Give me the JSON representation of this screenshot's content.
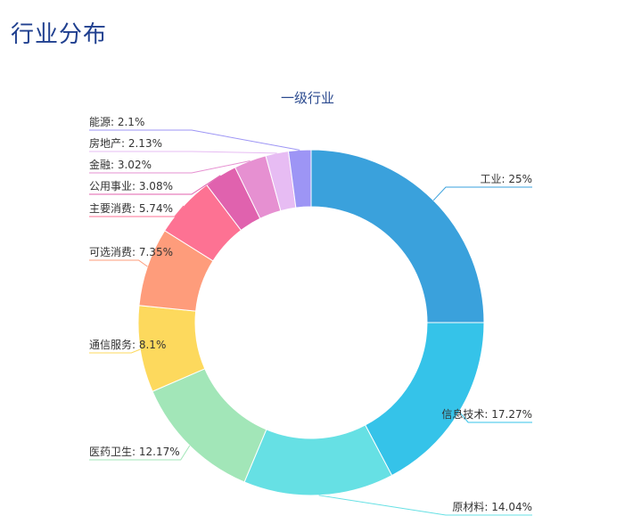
{
  "page": {
    "title": "行业分布"
  },
  "chart_data": {
    "type": "pie",
    "title": "一级行业",
    "slices": [
      {
        "name": "工业",
        "value": 25,
        "label": "工业: 25%",
        "color": "#3aa1dc"
      },
      {
        "name": "信息技术",
        "value": 17.27,
        "label": "信息技术: 17.27%",
        "color": "#35c3e9"
      },
      {
        "name": "原材料",
        "value": 14.04,
        "label": "原材料: 14.04%",
        "color": "#66e0e4"
      },
      {
        "name": "医药卫生",
        "value": 12.17,
        "label": "医药卫生: 12.17%",
        "color": "#a2e6b8"
      },
      {
        "name": "通信服务",
        "value": 8.1,
        "label": "通信服务: 8.1%",
        "color": "#fdd95d"
      },
      {
        "name": "可选消费",
        "value": 7.35,
        "label": "可选消费: 7.35%",
        "color": "#fe9c7b"
      },
      {
        "name": "主要消费",
        "value": 5.74,
        "label": "主要消费: 5.74%",
        "color": "#fd7293"
      },
      {
        "name": "公用事业",
        "value": 3.08,
        "label": "公用事业: 3.08%",
        "color": "#e062ae"
      },
      {
        "name": "金融",
        "value": 3.02,
        "label": "金融: 3.02%",
        "color": "#e690d1"
      },
      {
        "name": "房地产",
        "value": 2.13,
        "label": "房地产: 2.13%",
        "color": "#e7bcf3"
      },
      {
        "name": "能源",
        "value": 2.1,
        "label": "能源: 2.1%",
        "color": "#9d95f5"
      }
    ]
  }
}
